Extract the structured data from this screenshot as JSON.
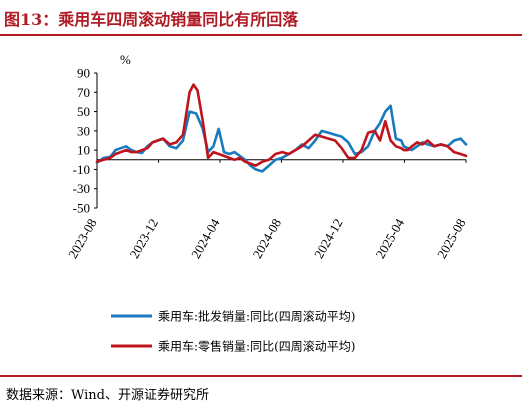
{
  "title": "图13：乘用车四周滚动销量同比有所回落",
  "source": "数据来源：Wind、开源证券研究所",
  "chart_data": {
    "type": "line",
    "ylabel": "%",
    "ylim": [
      -50,
      90
    ],
    "yticks": [
      90,
      70,
      50,
      30,
      10,
      -10,
      -30,
      -50
    ],
    "xticks": [
      "2023-08",
      "2023-12",
      "2024-04",
      "2024-08",
      "2024-12",
      "2025-04",
      "2025-08"
    ],
    "xlim": [
      0,
      27.9
    ],
    "grid": false,
    "legend_position": "bottom",
    "series": [
      {
        "name": "乘用车:批发销量:同比(四周滚动平均)",
        "color": "#1a7abf",
        "x": [
          0,
          0.5,
          1,
          1.4,
          1.8,
          2.2,
          2.6,
          3,
          3.4,
          3.8,
          4.2,
          4.6,
          5,
          5.5,
          6,
          6.5,
          7,
          7.5,
          8,
          8.4,
          8.8,
          9.2,
          9.6,
          10,
          10.4,
          10.8,
          11.2,
          11.6,
          12,
          12.5,
          13,
          13.5,
          14,
          14.5,
          15,
          15.5,
          16,
          16.5,
          17,
          17.5,
          18,
          18.5,
          19,
          19.5,
          20,
          20.5,
          21,
          21.4,
          21.8,
          22.2,
          22.6,
          23,
          23.2,
          23.5,
          23.8,
          24.2,
          24.6,
          25,
          25.5,
          26,
          26.5,
          27,
          27.5,
          27.9
        ],
        "values": [
          -3,
          2,
          3,
          10,
          12,
          14,
          10,
          8,
          7,
          14,
          18,
          20,
          22,
          14,
          12,
          20,
          50,
          48,
          32,
          8,
          14,
          32,
          8,
          6,
          8,
          4,
          0,
          -6,
          -10,
          -12,
          -6,
          0,
          2,
          6,
          10,
          16,
          12,
          20,
          30,
          28,
          26,
          24,
          18,
          6,
          8,
          14,
          30,
          38,
          50,
          56,
          22,
          20,
          14,
          12,
          10,
          14,
          18,
          16,
          14,
          16,
          14,
          20,
          22,
          16
        ]
      },
      {
        "name": "乘用车:零售销量:同比(四周滚动平均)",
        "color": "#c0141c",
        "x": [
          0,
          0.5,
          1,
          1.4,
          1.8,
          2.2,
          2.6,
          3,
          3.4,
          3.8,
          4.2,
          4.6,
          5,
          5.5,
          6,
          6.5,
          7,
          7.3,
          7.6,
          8,
          8.4,
          8.8,
          9.2,
          9.6,
          10,
          10.4,
          10.8,
          11.2,
          11.6,
          12,
          12.5,
          13,
          13.5,
          14,
          14.5,
          15,
          15.5,
          16,
          16.5,
          17,
          17.5,
          18,
          18.5,
          19,
          19.5,
          20,
          20.5,
          21,
          21.4,
          21.8,
          22.2,
          22.6,
          23,
          23.2,
          23.5,
          23.8,
          24.2,
          24.6,
          25,
          25.5,
          26,
          26.5,
          27,
          27.5,
          27.9
        ],
        "values": [
          -2,
          0,
          2,
          6,
          8,
          10,
          8,
          8,
          10,
          12,
          18,
          20,
          22,
          16,
          18,
          26,
          70,
          78,
          72,
          40,
          2,
          8,
          6,
          4,
          2,
          0,
          2,
          -2,
          -4,
          -6,
          -2,
          0,
          6,
          8,
          6,
          10,
          14,
          20,
          26,
          24,
          22,
          20,
          12,
          2,
          2,
          10,
          28,
          30,
          20,
          40,
          20,
          14,
          12,
          10,
          10,
          14,
          18,
          16,
          20,
          14,
          16,
          14,
          8,
          6,
          4
        ]
      }
    ]
  }
}
